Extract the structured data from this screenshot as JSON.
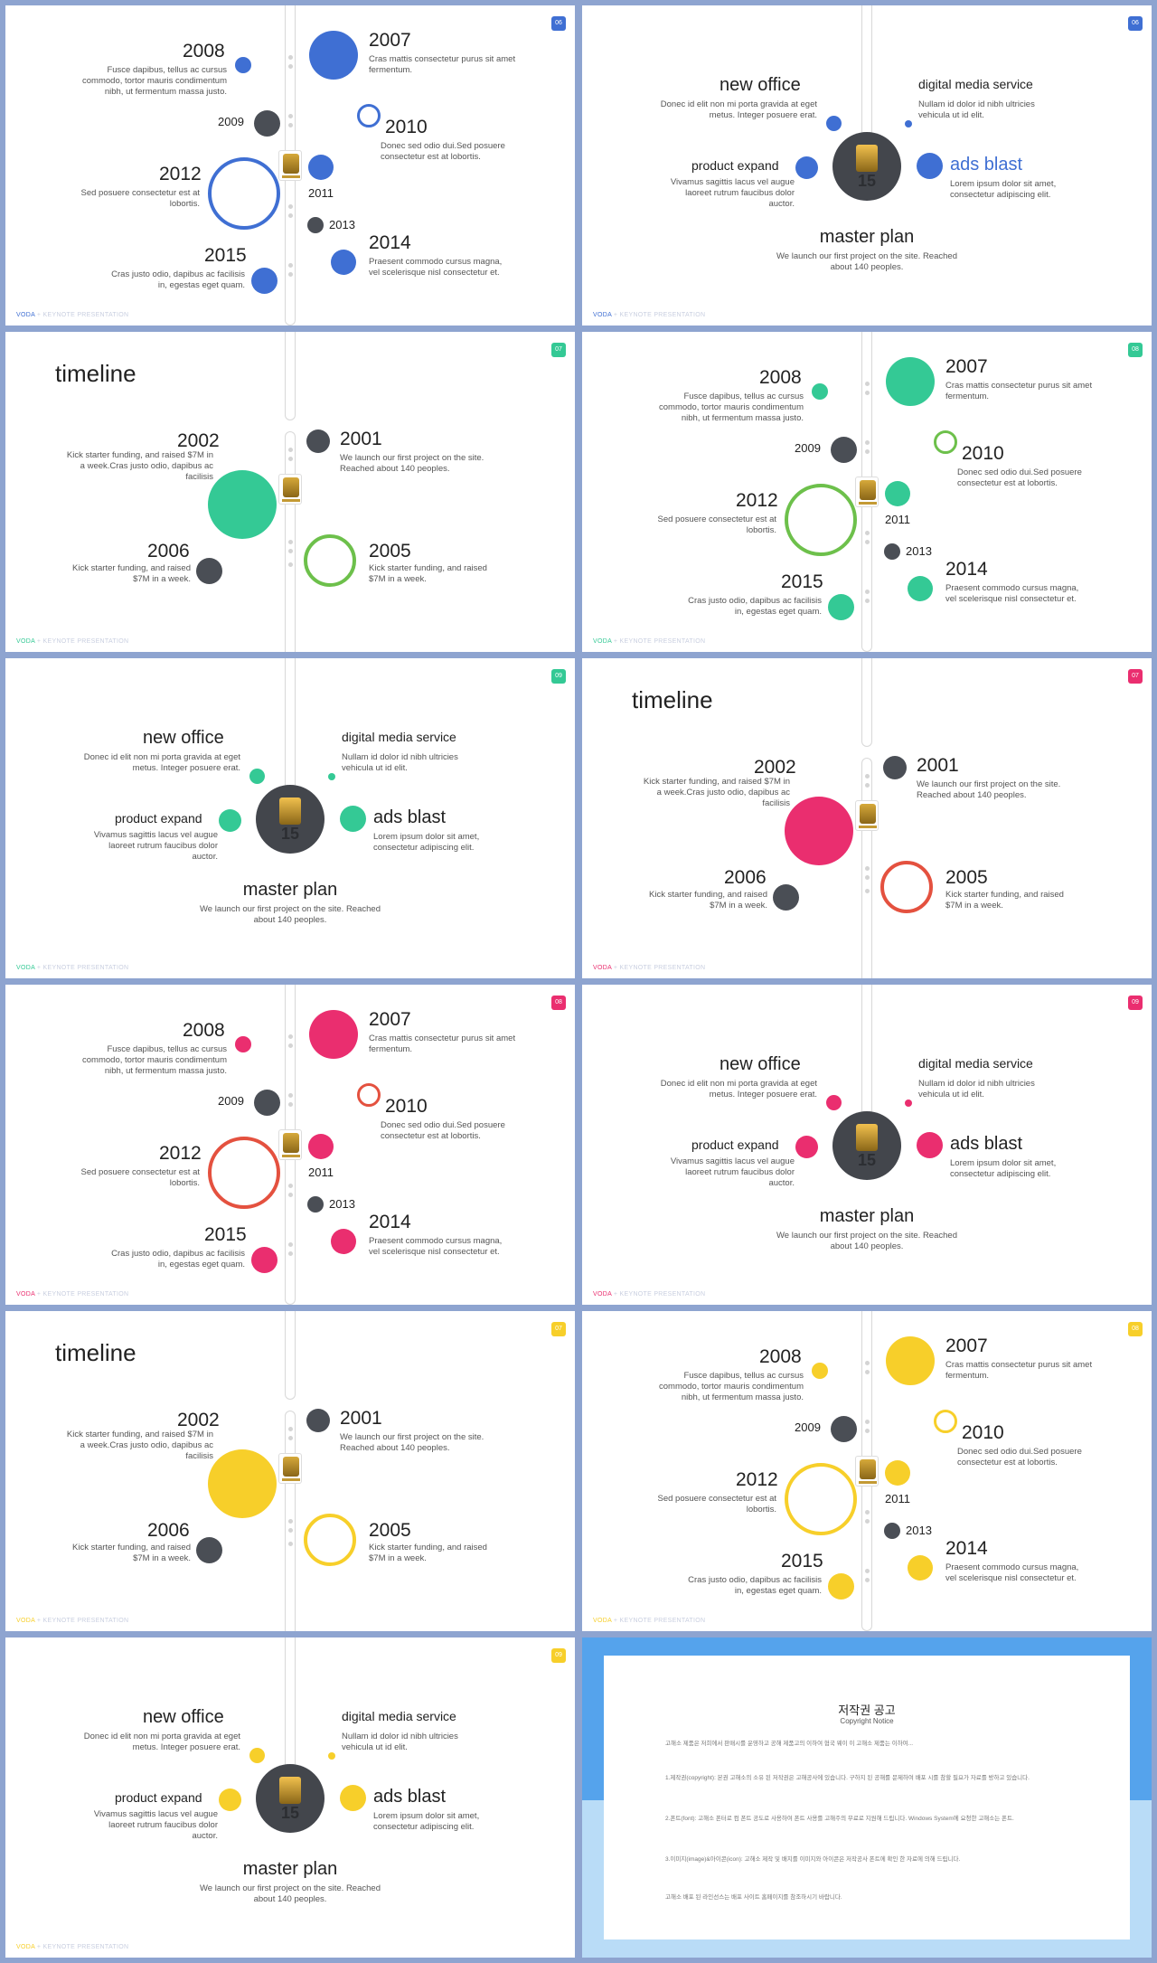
{
  "footer": {
    "brand": "VODA",
    "rest": " + KEYNOTE PRESENTATION"
  },
  "timeline_a": {
    "y2008": "2008",
    "d2008": "Fusce dapibus, tellus ac cursus commodo, tortor mauris condimentum nibh, ut fermentum massa justo.",
    "y2007": "2007",
    "d2007": "Cras mattis consectetur purus sit amet fermentum.",
    "y2009": "2009",
    "y2010": "2010",
    "d2010": "Donec sed odio dui.Sed posuere consectetur est at lobortis.",
    "y2012": "2012",
    "d2012": "Sed posuere consectetur est at lobortis.",
    "y2011": "2011",
    "y2013": "2013",
    "y2015": "2015",
    "d2015": "Cras justo odio, dapibus ac facilisis in, egestas eget quam.",
    "y2014": "2014",
    "d2014": "Praesent commodo cursus magna, vel scelerisque nisl consectetur et."
  },
  "hub": {
    "new_office": "new office",
    "new_office_desc": "Donec id elit non mi porta gravida at eget metus. Integer posuere erat.",
    "digital": "digital media service",
    "digital_desc": "Nullam id dolor id nibh ultricies vehicula ut id elit.",
    "product": "product expand",
    "product_desc": "Vivamus sagittis lacus vel augue laoreet rutrum faucibus dolor auctor.",
    "ads": "ads blast",
    "ads_desc": "Lorem ipsum dolor sit amet, consectetur adipiscing elit.",
    "master": "master plan",
    "master_desc": "We launch our first project on the site. Reached about 140 peoples.",
    "center_number": "15"
  },
  "timeline_b": {
    "title": "timeline",
    "y2002": "2002",
    "d2002": "Kick starter funding, and raised $7M in a week.Cras justo odio, dapibus ac facilisis",
    "y2001": "2001",
    "d2001": "We launch our first project on the site. Reached about 140 peoples.",
    "y2006": "2006",
    "d2006": "Kick starter funding, and raised $7M in a week.",
    "y2005": "2005",
    "d2005": "Kick starter funding, and raised $7M in a week."
  },
  "slide_numbers": [
    "06",
    "06",
    "07",
    "08",
    "09",
    "07",
    "08",
    "09",
    "07",
    "08",
    "09"
  ],
  "colors": {
    "blue": "#3f6fd3",
    "green": "#34c995",
    "pink": "#ea2e6f",
    "yellow": "#f7cf2a",
    "dark": "#4a4e55",
    "lightgreen": "#6dc04b",
    "red": "#e4513f"
  },
  "notice": {
    "title": "저작권 공고",
    "subtitle": "Copyright Notice",
    "p1": "고해소 제품은 저희에서 판매시를 운영하고 공해 제품고의 이하여 협국 웨이 이 고해소 제품는 이하여...",
    "p2": "1.제작권(copyright): 본권 고해소의 소유 된 저작권은 고해공사에 있습니다. 구하지 된 공해를 문제하여 배포 시를 참할 필요가 자료를 방하고 있습니다.",
    "p3": "2.폰트(font): 고해소 폰터로 컴 폰트 공도로 사용하여 폰트 사용를 고해주의 무료로 지원해 드립니다. Windows System에 요청한 고해소는 폰트.",
    "p4": "3.이미지(image)&아이콘(icon): 고해소 제작 및 배치를 이미지와 아이콘은 저작공사 폰트에 확인 한 자료에 의해 드립니다.",
    "p5": "고해소 배포 된 라인선스는 배포 사이트 홈페이지를 참조하시기 바랍니다."
  }
}
